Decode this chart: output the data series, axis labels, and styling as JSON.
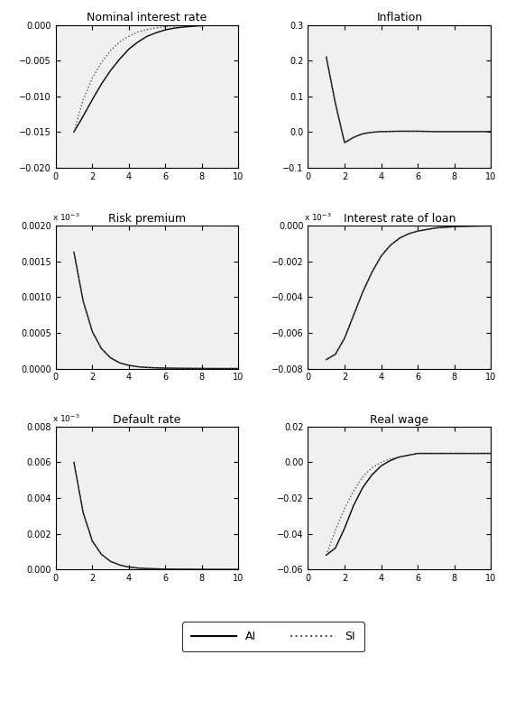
{
  "subplots": [
    {
      "title": "Nominal interest rate",
      "ylim": [
        -0.02,
        0.0
      ],
      "yticks": [
        0,
        -0.005,
        -0.01,
        -0.015,
        -0.02
      ],
      "xlim": [
        0,
        10
      ],
      "xticks": [
        0,
        2,
        4,
        6,
        8,
        10
      ],
      "ai_x": [
        1,
        1.5,
        2,
        2.5,
        3,
        3.5,
        4,
        4.5,
        5,
        5.5,
        6,
        6.5,
        7,
        7.5,
        8,
        8.5,
        9,
        9.5,
        10
      ],
      "ai_y": [
        -0.015,
        -0.0128,
        -0.0105,
        -0.0083,
        -0.0064,
        -0.0048,
        -0.0034,
        -0.0024,
        -0.0016,
        -0.0011,
        -0.0007,
        -0.00045,
        -0.0003,
        -0.0002,
        -0.00012,
        -7e-05,
        -4e-05,
        -2e-05,
        -1e-05
      ],
      "si_x": [
        1,
        1.5,
        2,
        2.5,
        3,
        3.5,
        4,
        4.5,
        5,
        5.5,
        6,
        6.5,
        7,
        7.5,
        8,
        8.5,
        9,
        9.5,
        10
      ],
      "si_y": [
        -0.015,
        -0.0105,
        -0.0075,
        -0.0053,
        -0.0036,
        -0.0024,
        -0.0016,
        -0.001,
        -0.00065,
        -0.00042,
        -0.00027,
        -0.00017,
        -0.0001,
        -6e-05,
        -4e-05,
        -2e-05,
        -1e-05,
        -5e-06,
        0
      ],
      "has_exponent": false,
      "exponent_label": ""
    },
    {
      "title": "Inflation",
      "ylim": [
        -0.1,
        0.3
      ],
      "yticks": [
        -0.1,
        0,
        0.1,
        0.2,
        0.3
      ],
      "xlim": [
        0,
        10
      ],
      "xticks": [
        0,
        2,
        4,
        6,
        8,
        10
      ],
      "ai_x": [
        1,
        1.5,
        2,
        2.5,
        3,
        3.5,
        4,
        5,
        6,
        7,
        8,
        9,
        10
      ],
      "ai_y": [
        0.21,
        0.08,
        -0.03,
        -0.015,
        -0.005,
        -0.001,
        0.001,
        0.002,
        0.002,
        0.001,
        0.001,
        0.001,
        0.001
      ],
      "si_x": [
        1,
        1.5,
        2,
        2.5,
        3,
        3.5,
        4,
        5,
        6,
        7,
        8,
        9,
        10
      ],
      "si_y": [
        0.21,
        0.08,
        -0.03,
        -0.015,
        -0.005,
        -0.001,
        0.001,
        0.002,
        0.002,
        0.001,
        0.001,
        0.001,
        0.001
      ],
      "has_exponent": false,
      "exponent_label": ""
    },
    {
      "title": "Risk premium",
      "ylim": [
        0,
        0.002
      ],
      "yticks": [
        0,
        0.0005,
        0.001,
        0.0015,
        0.002
      ],
      "xlim": [
        0,
        10
      ],
      "xticks": [
        0,
        2,
        4,
        6,
        8,
        10
      ],
      "ai_x": [
        1,
        1.5,
        2,
        2.5,
        3,
        3.5,
        4,
        4.5,
        5,
        5.5,
        6,
        7,
        8,
        9,
        10
      ],
      "ai_y": [
        0.00163,
        0.00095,
        0.00052,
        0.00028,
        0.00015,
        8e-05,
        4.5e-05,
        2.5e-05,
        1.5e-05,
        1e-05,
        6e-06,
        3e-06,
        1e-06,
        0,
        0
      ],
      "si_x": [
        1,
        1.5,
        2,
        2.5,
        3,
        3.5,
        4,
        4.5,
        5,
        5.5,
        6,
        7,
        8,
        9,
        10
      ],
      "si_y": [
        0.00163,
        0.00095,
        0.00052,
        0.00028,
        0.00015,
        8e-05,
        4.5e-05,
        2.5e-05,
        1.5e-05,
        1e-05,
        6e-06,
        3e-06,
        1e-06,
        0,
        0
      ],
      "has_exponent": true,
      "exponent_label": "x 10⁻³"
    },
    {
      "title": "Interest rate of loan",
      "ylim": [
        -0.008,
        0.0
      ],
      "yticks": [
        0,
        -0.002,
        -0.004,
        -0.006,
        -0.008
      ],
      "xlim": [
        0,
        10
      ],
      "xticks": [
        0,
        2,
        4,
        6,
        8,
        10
      ],
      "ai_x": [
        1,
        1.5,
        2,
        2.5,
        3,
        3.5,
        4,
        4.5,
        5,
        5.5,
        6,
        7,
        8,
        9,
        10
      ],
      "ai_y": [
        -0.0075,
        -0.0072,
        -0.0063,
        -0.005,
        -0.0037,
        -0.0026,
        -0.0017,
        -0.0011,
        -0.0007,
        -0.00045,
        -0.0003,
        -0.00012,
        -5e-05,
        -2e-05,
        -5e-06
      ],
      "si_x": [
        1,
        1.5,
        2,
        2.5,
        3,
        3.5,
        4,
        4.5,
        5,
        5.5,
        6,
        7,
        8,
        9,
        10
      ],
      "si_y": [
        -0.0075,
        -0.0072,
        -0.0063,
        -0.005,
        -0.0037,
        -0.0026,
        -0.0017,
        -0.0011,
        -0.0007,
        -0.00045,
        -0.0003,
        -0.00012,
        -5e-05,
        -2e-05,
        -5e-06
      ],
      "has_exponent": true,
      "exponent_label": "x 10⁻³"
    },
    {
      "title": "Default rate",
      "ylim": [
        0,
        0.008
      ],
      "yticks": [
        0,
        0.002,
        0.004,
        0.006,
        0.008
      ],
      "xlim": [
        0,
        10
      ],
      "xticks": [
        0,
        2,
        4,
        6,
        8,
        10
      ],
      "ai_x": [
        1,
        1.5,
        2,
        2.5,
        3,
        3.5,
        4,
        4.5,
        5,
        6,
        7,
        8,
        9,
        10
      ],
      "ai_y": [
        0.006,
        0.0032,
        0.0016,
        0.00085,
        0.00045,
        0.00025,
        0.00013,
        8e-05,
        5e-05,
        2e-05,
        1e-05,
        3e-06,
        1e-06,
        0
      ],
      "si_x": [
        1,
        1.5,
        2,
        2.5,
        3,
        3.5,
        4,
        4.5,
        5,
        6,
        7,
        8,
        9,
        10
      ],
      "si_y": [
        0.006,
        0.0032,
        0.0016,
        0.00085,
        0.00045,
        0.00025,
        0.00013,
        8e-05,
        5e-05,
        2e-05,
        1e-05,
        3e-06,
        1e-06,
        0
      ],
      "has_exponent": true,
      "exponent_label": "x 10⁻³"
    },
    {
      "title": "Real wage",
      "ylim": [
        -0.06,
        0.02
      ],
      "yticks": [
        -0.06,
        -0.04,
        -0.02,
        0,
        0.02
      ],
      "xlim": [
        0,
        10
      ],
      "xticks": [
        0,
        2,
        4,
        6,
        8,
        10
      ],
      "ai_x": [
        1,
        1.5,
        2,
        2.5,
        3,
        3.5,
        4,
        4.5,
        5,
        5.5,
        6,
        7,
        8,
        9,
        10
      ],
      "ai_y": [
        -0.052,
        -0.048,
        -0.037,
        -0.024,
        -0.014,
        -0.007,
        -0.002,
        0.001,
        0.003,
        0.004,
        0.005,
        0.005,
        0.005,
        0.005,
        0.005
      ],
      "si_x": [
        1,
        1.5,
        2,
        2.5,
        3,
        3.5,
        4,
        4.5,
        5,
        5.5,
        6,
        7,
        8,
        9,
        10
      ],
      "si_y": [
        -0.052,
        -0.038,
        -0.026,
        -0.016,
        -0.008,
        -0.003,
        0.0,
        0.002,
        0.003,
        0.004,
        0.005,
        0.005,
        0.005,
        0.005,
        0.005
      ],
      "has_exponent": false,
      "exponent_label": ""
    }
  ],
  "legend_labels": [
    "AI",
    "SI"
  ],
  "ai_color": "#000000",
  "si_color": "#555555",
  "ai_linestyle": "-",
  "si_linestyle": ":",
  "ai_linewidth": 1.0,
  "si_linewidth": 1.0,
  "bg_color": "#f0f0f0",
  "tick_fontsize": 7,
  "title_fontsize": 9
}
